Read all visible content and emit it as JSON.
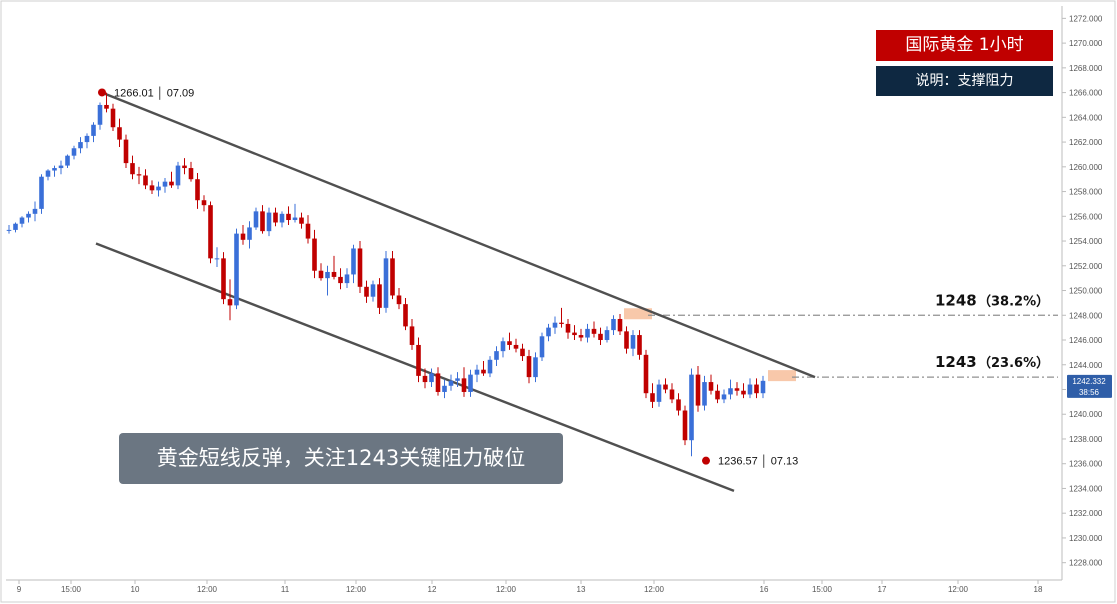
{
  "title": "国际黄金  1小时",
  "subtitle": "说明：支撑阻力",
  "caption": "黄金短线反弹，关注1243关键阻力破位",
  "colors": {
    "up": "#3a6fd8",
    "down": "#c00000",
    "channel": "#505050",
    "level_line": "#909090",
    "zone": "#f5b58e",
    "price_tag": "#2f5ea8"
  },
  "chart_data": {
    "type": "candlestick",
    "ylim": [
      1226.6,
      1273.0
    ],
    "y_ticks": [
      "1228.000",
      "1230.000",
      "1232.000",
      "1234.000",
      "1236.000",
      "1238.000",
      "1240.000",
      "1242.000",
      "1244.000",
      "1246.000",
      "1248.000",
      "1250.000",
      "1252.000",
      "1254.000",
      "1256.000",
      "1258.000",
      "1260.000",
      "1262.000",
      "1264.000",
      "1266.000",
      "1268.000",
      "1270.000",
      "1272.000"
    ],
    "x_ticks": [
      "9",
      "15:00",
      "10",
      "12:00",
      "11",
      "12:00",
      "12",
      "12:00",
      "13",
      "12:00",
      "16",
      "15:00",
      "17",
      "12:00",
      "18"
    ],
    "current_price": {
      "price": "1242.332",
      "countdown": "38:56"
    },
    "levels": [
      {
        "price": 1248,
        "label": "1248",
        "pct": "（38.2%）"
      },
      {
        "price": 1243,
        "label": "1243",
        "pct": "（23.6%）"
      }
    ],
    "annotations": [
      {
        "price": 1266.01,
        "text": "1266.01 │ 07.09",
        "position": "high"
      },
      {
        "price": 1236.57,
        "text": "1236.57 │ 07.13",
        "position": "low"
      }
    ],
    "channel": [
      {
        "name": "upper",
        "start": 1266.0,
        "end": 1243.0
      },
      {
        "name": "lower",
        "start": 1253.8,
        "end": 1233.8
      }
    ],
    "candles": [
      [
        1254.9,
        1255.3,
        1254.6,
        1254.9
      ],
      [
        1254.9,
        1255.5,
        1254.7,
        1255.4
      ],
      [
        1255.4,
        1256.0,
        1255.1,
        1255.9
      ],
      [
        1255.9,
        1256.4,
        1255.5,
        1256.2
      ],
      [
        1256.2,
        1257.2,
        1255.6,
        1256.6
      ],
      [
        1256.6,
        1259.4,
        1256.2,
        1259.2
      ],
      [
        1259.2,
        1259.8,
        1258.9,
        1259.7
      ],
      [
        1259.7,
        1260.1,
        1259.2,
        1259.9
      ],
      [
        1259.9,
        1260.5,
        1259.4,
        1260.1
      ],
      [
        1260.1,
        1261.0,
        1259.9,
        1260.9
      ],
      [
        1260.9,
        1261.7,
        1260.6,
        1261.5
      ],
      [
        1261.5,
        1262.4,
        1261.1,
        1262.0
      ],
      [
        1262.0,
        1262.7,
        1261.5,
        1262.5
      ],
      [
        1262.5,
        1263.6,
        1262.0,
        1263.4
      ],
      [
        1263.4,
        1265.2,
        1263.0,
        1265.0
      ],
      [
        1265.0,
        1266.0,
        1264.4,
        1264.7
      ],
      [
        1264.7,
        1265.1,
        1262.9,
        1263.2
      ],
      [
        1263.2,
        1263.9,
        1261.6,
        1262.2
      ],
      [
        1262.2,
        1262.6,
        1259.9,
        1260.3
      ],
      [
        1260.3,
        1260.9,
        1259.0,
        1259.4
      ],
      [
        1259.4,
        1260.0,
        1258.6,
        1259.3
      ],
      [
        1259.3,
        1259.8,
        1258.2,
        1258.5
      ],
      [
        1258.5,
        1258.9,
        1257.8,
        1258.1
      ],
      [
        1258.1,
        1258.8,
        1257.6,
        1258.4
      ],
      [
        1258.4,
        1259.1,
        1257.9,
        1258.8
      ],
      [
        1258.8,
        1259.6,
        1258.3,
        1258.5
      ],
      [
        1258.5,
        1260.4,
        1258.2,
        1260.1
      ],
      [
        1260.1,
        1260.7,
        1259.4,
        1259.9
      ],
      [
        1259.9,
        1260.4,
        1258.8,
        1259.0
      ],
      [
        1259.0,
        1259.5,
        1256.6,
        1257.3
      ],
      [
        1257.3,
        1257.7,
        1256.4,
        1256.9
      ],
      [
        1256.9,
        1257.2,
        1252.2,
        1252.6
      ],
      [
        1252.6,
        1253.5,
        1251.9,
        1252.6
      ],
      [
        1252.6,
        1253.1,
        1248.9,
        1249.3
      ],
      [
        1249.3,
        1250.9,
        1247.6,
        1248.8
      ],
      [
        1248.8,
        1255.0,
        1248.5,
        1254.6
      ],
      [
        1254.6,
        1255.3,
        1253.7,
        1254.1
      ],
      [
        1254.1,
        1255.6,
        1253.4,
        1255.1
      ],
      [
        1255.1,
        1256.7,
        1254.9,
        1256.4
      ],
      [
        1256.4,
        1256.9,
        1254.6,
        1254.8
      ],
      [
        1254.8,
        1256.7,
        1254.4,
        1256.3
      ],
      [
        1256.3,
        1256.7,
        1255.2,
        1255.5
      ],
      [
        1255.5,
        1256.4,
        1255.1,
        1256.2
      ],
      [
        1256.2,
        1256.8,
        1255.3,
        1255.7
      ],
      [
        1255.7,
        1257.0,
        1255.5,
        1255.9
      ],
      [
        1255.9,
        1256.3,
        1255.0,
        1255.4
      ],
      [
        1255.4,
        1256.1,
        1253.8,
        1254.2
      ],
      [
        1254.2,
        1254.9,
        1251.0,
        1251.6
      ],
      [
        1251.6,
        1252.2,
        1250.8,
        1251.0
      ],
      [
        1251.0,
        1252.0,
        1249.6,
        1251.5
      ],
      [
        1251.5,
        1252.8,
        1250.9,
        1251.1
      ],
      [
        1251.1,
        1251.8,
        1250.1,
        1250.6
      ],
      [
        1250.6,
        1251.8,
        1250.2,
        1251.3
      ],
      [
        1251.3,
        1253.7,
        1250.6,
        1253.4
      ],
      [
        1253.4,
        1254.0,
        1249.8,
        1250.3
      ],
      [
        1250.3,
        1250.8,
        1249.0,
        1249.5
      ],
      [
        1249.5,
        1250.8,
        1249.1,
        1250.5
      ],
      [
        1250.5,
        1251.0,
        1248.1,
        1248.6
      ],
      [
        1248.6,
        1253.2,
        1248.2,
        1252.6
      ],
      [
        1252.6,
        1253.2,
        1249.3,
        1249.6
      ],
      [
        1249.6,
        1250.2,
        1248.5,
        1248.9
      ],
      [
        1248.9,
        1249.4,
        1246.8,
        1247.1
      ],
      [
        1247.1,
        1247.7,
        1245.2,
        1245.6
      ],
      [
        1245.6,
        1246.2,
        1242.6,
        1243.1
      ],
      [
        1243.1,
        1243.7,
        1242.1,
        1242.6
      ],
      [
        1242.6,
        1243.7,
        1242.2,
        1243.3
      ],
      [
        1243.3,
        1243.8,
        1241.5,
        1241.8
      ],
      [
        1241.8,
        1242.8,
        1241.3,
        1242.3
      ],
      [
        1242.3,
        1243.2,
        1241.9,
        1242.7
      ],
      [
        1242.7,
        1243.4,
        1242.2,
        1242.9
      ],
      [
        1242.9,
        1243.8,
        1241.4,
        1241.8
      ],
      [
        1241.8,
        1243.6,
        1241.4,
        1243.2
      ],
      [
        1243.2,
        1244.0,
        1242.6,
        1243.6
      ],
      [
        1243.6,
        1244.3,
        1243.1,
        1243.3
      ],
      [
        1243.3,
        1244.7,
        1243.0,
        1244.4
      ],
      [
        1244.4,
        1245.5,
        1243.9,
        1245.1
      ],
      [
        1245.1,
        1246.2,
        1244.6,
        1245.9
      ],
      [
        1245.9,
        1246.6,
        1245.2,
        1245.6
      ],
      [
        1245.6,
        1246.1,
        1245.0,
        1245.3
      ],
      [
        1245.3,
        1245.7,
        1244.3,
        1244.7
      ],
      [
        1244.7,
        1245.2,
        1242.5,
        1243.0
      ],
      [
        1243.0,
        1245.0,
        1242.6,
        1244.6
      ],
      [
        1244.6,
        1246.6,
        1244.3,
        1246.3
      ],
      [
        1246.3,
        1247.3,
        1245.9,
        1247.0
      ],
      [
        1247.0,
        1247.9,
        1246.5,
        1247.4
      ],
      [
        1247.4,
        1248.6,
        1247.0,
        1247.3
      ],
      [
        1247.3,
        1247.7,
        1246.1,
        1246.6
      ],
      [
        1246.6,
        1247.2,
        1246.0,
        1246.4
      ],
      [
        1246.4,
        1246.9,
        1245.9,
        1246.2
      ],
      [
        1246.2,
        1247.3,
        1245.8,
        1246.9
      ],
      [
        1246.9,
        1247.5,
        1246.2,
        1246.5
      ],
      [
        1246.5,
        1247.0,
        1245.6,
        1246.0
      ],
      [
        1246.0,
        1247.1,
        1245.8,
        1246.8
      ],
      [
        1246.8,
        1248.0,
        1246.4,
        1247.7
      ],
      [
        1247.7,
        1248.1,
        1246.4,
        1246.7
      ],
      [
        1246.7,
        1247.1,
        1244.9,
        1245.3
      ],
      [
        1245.3,
        1246.8,
        1244.7,
        1246.4
      ],
      [
        1246.4,
        1246.8,
        1244.4,
        1244.8
      ],
      [
        1244.8,
        1245.2,
        1241.3,
        1241.7
      ],
      [
        1241.7,
        1242.5,
        1240.5,
        1241.0
      ],
      [
        1241.0,
        1242.8,
        1240.6,
        1242.4
      ],
      [
        1242.4,
        1242.9,
        1241.7,
        1242.0
      ],
      [
        1242.0,
        1242.5,
        1240.9,
        1241.2
      ],
      [
        1241.2,
        1241.7,
        1239.9,
        1240.3
      ],
      [
        1240.3,
        1240.7,
        1237.5,
        1237.9
      ],
      [
        1237.9,
        1243.7,
        1236.6,
        1243.2
      ],
      [
        1243.2,
        1243.9,
        1240.2,
        1240.7
      ],
      [
        1240.7,
        1243.1,
        1240.3,
        1242.6
      ],
      [
        1242.6,
        1243.2,
        1241.6,
        1241.9
      ],
      [
        1241.9,
        1242.4,
        1240.9,
        1241.2
      ],
      [
        1241.2,
        1242.0,
        1240.9,
        1241.6
      ],
      [
        1241.6,
        1242.8,
        1241.2,
        1242.1
      ],
      [
        1242.1,
        1242.6,
        1241.5,
        1241.9
      ],
      [
        1241.9,
        1242.5,
        1241.3,
        1241.6
      ],
      [
        1241.6,
        1242.9,
        1241.3,
        1242.4
      ],
      [
        1242.4,
        1242.9,
        1241.3,
        1241.7
      ],
      [
        1241.7,
        1243.1,
        1241.3,
        1242.7
      ]
    ]
  }
}
